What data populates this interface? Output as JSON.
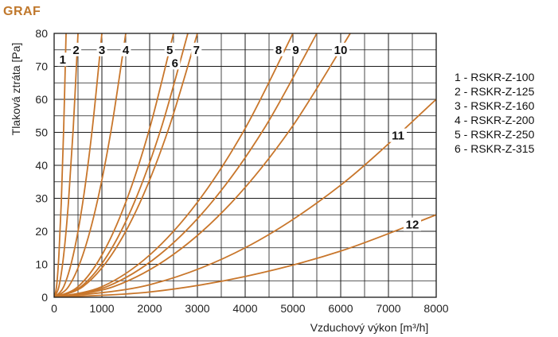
{
  "header": {
    "title": "GRAF"
  },
  "legend": [
    "1 - RSKR-Z-100",
    "2 - RSKR-Z-125",
    "3 - RSKR-Z-160",
    "4 - RSKR-Z-200",
    "5 - RSKR-Z-250",
    "6 - RSKR-Z-315"
  ],
  "chart_data": {
    "type": "line",
    "title": "",
    "xlabel": "Vzduchový výkon [m³/h]",
    "ylabel": "Tlaková ztráta [Pa]",
    "xlim": [
      0,
      8000
    ],
    "ylim": [
      0,
      80
    ],
    "x_ticks": [
      0,
      1000,
      2000,
      3000,
      4000,
      5000,
      6000,
      7000,
      8000
    ],
    "y_ticks": [
      0,
      10,
      20,
      30,
      40,
      50,
      60,
      70,
      80
    ],
    "grid": true,
    "colors": {
      "curve": "#c8762b",
      "grid": "#1a1a1a"
    },
    "series": [
      {
        "name": "1",
        "x": [
          0,
          50,
          100,
          150,
          200,
          250
        ],
        "y": [
          0,
          3.2,
          12.8,
          28.8,
          51.2,
          80
        ]
      },
      {
        "name": "2",
        "x": [
          0,
          100,
          200,
          300,
          400,
          500
        ],
        "y": [
          0,
          3.2,
          12.8,
          28.8,
          51.2,
          80
        ]
      },
      {
        "name": "3",
        "x": [
          0,
          200,
          400,
          600,
          800,
          1000
        ],
        "y": [
          0,
          3.2,
          12.8,
          28.8,
          51.2,
          80
        ]
      },
      {
        "name": "4",
        "x": [
          0,
          300,
          600,
          900,
          1200,
          1500
        ],
        "y": [
          0,
          3.2,
          12.8,
          28.8,
          51.2,
          80
        ]
      },
      {
        "name": "5",
        "x": [
          0,
          500,
          1000,
          1500,
          2000,
          2500
        ],
        "y": [
          0,
          3.2,
          12.8,
          28.8,
          51.2,
          80
        ]
      },
      {
        "name": "6",
        "x": [
          0,
          560,
          1120,
          1680,
          2240,
          2800
        ],
        "y": [
          0,
          3.2,
          12.8,
          28.8,
          51.2,
          80
        ]
      },
      {
        "name": "7",
        "x": [
          0,
          600,
          1200,
          1800,
          2400,
          3000
        ],
        "y": [
          0,
          3.2,
          12.8,
          28.8,
          51.2,
          80
        ]
      },
      {
        "name": "8",
        "x": [
          0,
          1000,
          2000,
          3000,
          4000,
          5000
        ],
        "y": [
          0,
          3.2,
          12.8,
          28.8,
          51.2,
          80
        ]
      },
      {
        "name": "9",
        "x": [
          0,
          1100,
          2200,
          3300,
          4400,
          5500
        ],
        "y": [
          0,
          3.2,
          12.8,
          28.8,
          51.2,
          80
        ]
      },
      {
        "name": "10",
        "x": [
          0,
          1240,
          2480,
          3720,
          4960,
          6200
        ],
        "y": [
          0,
          3.2,
          12.8,
          28.8,
          51.2,
          80
        ]
      },
      {
        "name": "11",
        "x": [
          0,
          2000,
          4000,
          6000,
          8000
        ],
        "y": [
          0,
          3.8,
          15,
          34,
          60
        ]
      },
      {
        "name": "12",
        "x": [
          0,
          2000,
          4000,
          6000,
          8000
        ],
        "y": [
          0,
          1.6,
          6.3,
          14,
          25
        ]
      }
    ],
    "curve_labels": [
      {
        "text": "1",
        "x": 180,
        "y": 72
      },
      {
        "text": "2",
        "x": 460,
        "y": 75
      },
      {
        "text": "3",
        "x": 1000,
        "y": 75
      },
      {
        "text": "4",
        "x": 1500,
        "y": 75
      },
      {
        "text": "5",
        "x": 2420,
        "y": 75
      },
      {
        "text": "6",
        "x": 2530,
        "y": 71
      },
      {
        "text": "7",
        "x": 2980,
        "y": 75
      },
      {
        "text": "8",
        "x": 4700,
        "y": 75
      },
      {
        "text": "9",
        "x": 5060,
        "y": 75
      },
      {
        "text": "10",
        "x": 6000,
        "y": 75
      },
      {
        "text": "11",
        "x": 7200,
        "y": 49
      },
      {
        "text": "12",
        "x": 7500,
        "y": 22
      }
    ]
  }
}
